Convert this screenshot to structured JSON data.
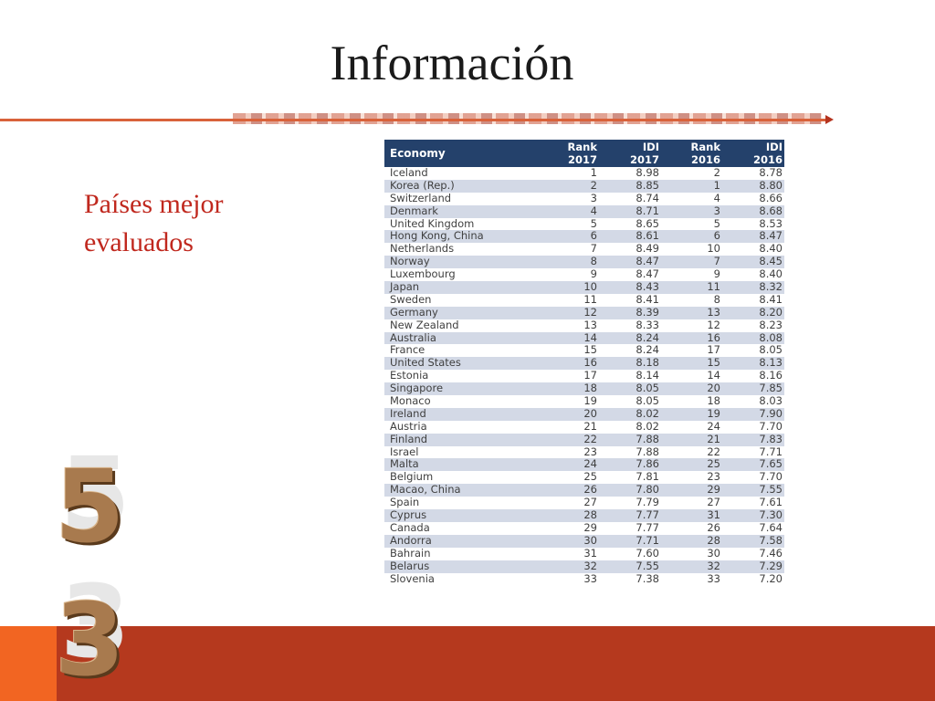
{
  "slide": {
    "title": "Información",
    "subtitle": "Países mejor evaluados",
    "digits": [
      "5",
      "3"
    ]
  },
  "table": {
    "headers": {
      "economy": "Economy",
      "rank2017": [
        "Rank",
        "2017"
      ],
      "idi2017": [
        "IDI",
        "2017"
      ],
      "rank2016": [
        "Rank",
        "2016"
      ],
      "idi2016": [
        "IDI",
        "2016"
      ]
    },
    "rows": [
      [
        "Iceland",
        "1",
        "8.98",
        "2",
        "8.78"
      ],
      [
        "Korea (Rep.)",
        "2",
        "8.85",
        "1",
        "8.80"
      ],
      [
        "Switzerland",
        "3",
        "8.74",
        "4",
        "8.66"
      ],
      [
        "Denmark",
        "4",
        "8.71",
        "3",
        "8.68"
      ],
      [
        "United Kingdom",
        "5",
        "8.65",
        "5",
        "8.53"
      ],
      [
        "Hong Kong, China",
        "6",
        "8.61",
        "6",
        "8.47"
      ],
      [
        "Netherlands",
        "7",
        "8.49",
        "10",
        "8.40"
      ],
      [
        "Norway",
        "8",
        "8.47",
        "7",
        "8.45"
      ],
      [
        "Luxembourg",
        "9",
        "8.47",
        "9",
        "8.40"
      ],
      [
        "Japan",
        "10",
        "8.43",
        "11",
        "8.32"
      ],
      [
        "Sweden",
        "11",
        "8.41",
        "8",
        "8.41"
      ],
      [
        "Germany",
        "12",
        "8.39",
        "13",
        "8.20"
      ],
      [
        "New Zealand",
        "13",
        "8.33",
        "12",
        "8.23"
      ],
      [
        "Australia",
        "14",
        "8.24",
        "16",
        "8.08"
      ],
      [
        "France",
        "15",
        "8.24",
        "17",
        "8.05"
      ],
      [
        "United States",
        "16",
        "8.18",
        "15",
        "8.13"
      ],
      [
        "Estonia",
        "17",
        "8.14",
        "14",
        "8.16"
      ],
      [
        "Singapore",
        "18",
        "8.05",
        "20",
        "7.85"
      ],
      [
        "Monaco",
        "19",
        "8.05",
        "18",
        "8.03"
      ],
      [
        "Ireland",
        "20",
        "8.02",
        "19",
        "7.90"
      ],
      [
        "Austria",
        "21",
        "8.02",
        "24",
        "7.70"
      ],
      [
        "Finland",
        "22",
        "7.88",
        "21",
        "7.83"
      ],
      [
        "Israel",
        "23",
        "7.88",
        "22",
        "7.71"
      ],
      [
        "Malta",
        "24",
        "7.86",
        "25",
        "7.65"
      ],
      [
        "Belgium",
        "25",
        "7.81",
        "23",
        "7.70"
      ],
      [
        "Macao, China",
        "26",
        "7.80",
        "29",
        "7.55"
      ],
      [
        "Spain",
        "27",
        "7.79",
        "27",
        "7.61"
      ],
      [
        "Cyprus",
        "28",
        "7.77",
        "31",
        "7.30"
      ],
      [
        "Canada",
        "29",
        "7.77",
        "26",
        "7.64"
      ],
      [
        "Andorra",
        "30",
        "7.71",
        "28",
        "7.58"
      ],
      [
        "Bahrain",
        "31",
        "7.60",
        "30",
        "7.46"
      ],
      [
        "Belarus",
        "32",
        "7.55",
        "32",
        "7.29"
      ],
      [
        "Slovenia",
        "33",
        "7.38",
        "33",
        "7.20"
      ]
    ]
  },
  "colors": {
    "header_bg": "#24416b",
    "stripe": "#d3d9e6",
    "accent_red": "#c0281e",
    "band": "#b5391e",
    "band_accent": "#f26522"
  }
}
